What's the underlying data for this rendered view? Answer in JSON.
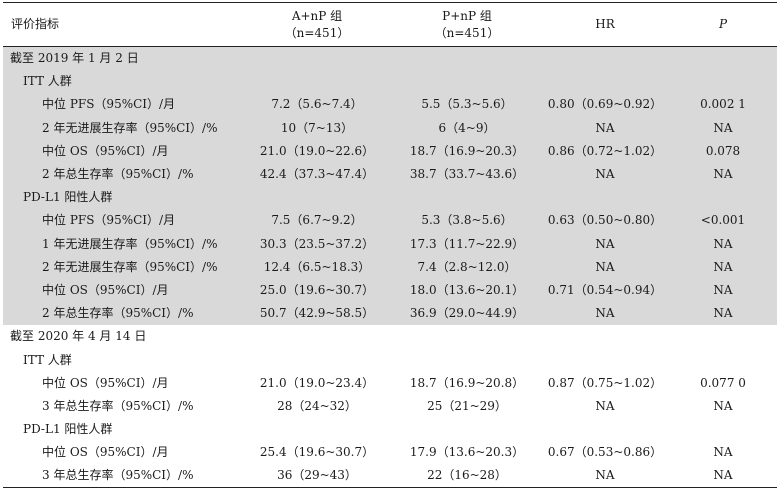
{
  "header": {
    "col1": "评价指标",
    "col2_line1": "A+nP 组",
    "col2_line2": "（n=451）",
    "col3_line1": "P+nP 组",
    "col3_line2": "（n=451）",
    "col4": "HR",
    "col5": "P"
  },
  "colors": {
    "shade": "#d9d9d9",
    "rule": "#222222"
  },
  "rows": [
    {
      "label": "截至 2019 年 1 月 2 日",
      "a": "",
      "b": "",
      "hr": "",
      "p": ""
    },
    {
      "label": "ITT 人群",
      "a": "",
      "b": "",
      "hr": "",
      "p": ""
    },
    {
      "label": "中位 PFS（95%CI）/月",
      "a": "7.2（5.6~7.4）",
      "b": "5.5（5.3~5.6）",
      "hr": "0.80（0.69~0.92）",
      "p": "0.002 1"
    },
    {
      "label": "2 年无进展生存率（95%CI）/%",
      "a": "10（7~13）",
      "b": "6（4~9）",
      "hr": "NA",
      "p": "NA"
    },
    {
      "label": "中位 OS（95%CI）/月",
      "a": "21.0（19.0~22.6）",
      "b": "18.7（16.9~20.3）",
      "hr": "0.86（0.72~1.02）",
      "p": "0.078"
    },
    {
      "label": "2 年总生存率（95%CI）/%",
      "a": "42.4（37.3~47.4）",
      "b": "38.7（33.7~43.6）",
      "hr": "NA",
      "p": "NA"
    },
    {
      "label": "PD-L1 阳性人群",
      "a": "",
      "b": "",
      "hr": "",
      "p": ""
    },
    {
      "label": "中位 PFS（95%CI）/月",
      "a": "7.5（6.7~9.2）",
      "b": "5.3（3.8~5.6）",
      "hr": "0.63（0.50~0.80）",
      "p": "<0.001"
    },
    {
      "label": "1 年无进展生存率（95%CI）/%",
      "a": "30.3（23.5~37.2）",
      "b": "17.3（11.7~22.9）",
      "hr": "NA",
      "p": "NA"
    },
    {
      "label": "2 年无进展生存率（95%CI）/%",
      "a": "12.4（6.5~18.3）",
      "b": "7.4（2.8~12.0）",
      "hr": "NA",
      "p": "NA"
    },
    {
      "label": "中位 OS（95%CI）/月",
      "a": "25.0（19.6~30.7）",
      "b": "18.0（13.6~20.1）",
      "hr": "0.71（0.54~0.94）",
      "p": "NA"
    },
    {
      "label": "2 年总生存率（95%CI）/%",
      "a": "50.7（42.9~58.5）",
      "b": "36.9（29.0~44.9）",
      "hr": "NA",
      "p": "NA"
    },
    {
      "label": "截至 2020 年 4 月 14 日",
      "a": "",
      "b": "",
      "hr": "",
      "p": ""
    },
    {
      "label": "ITT 人群",
      "a": "",
      "b": "",
      "hr": "",
      "p": ""
    },
    {
      "label": "中位 OS（95%CI）/月",
      "a": "21.0（19.0~23.4）",
      "b": "18.7（16.9~20.8）",
      "hr": "0.87（0.75~1.02）",
      "p": "0.077 0"
    },
    {
      "label": "3 年总生存率（95%CI）/%",
      "a": "28（24~32）",
      "b": "25（21~29）",
      "hr": "NA",
      "p": "NA"
    },
    {
      "label": "PD-L1 阳性人群",
      "a": "",
      "b": "",
      "hr": "",
      "p": ""
    },
    {
      "label": "中位 OS（95%CI）/月",
      "a": "25.4（19.6~30.7）",
      "b": "17.9（13.6~20.3）",
      "hr": "0.67（0.53~0.86）",
      "p": "NA"
    },
    {
      "label": "3 年总生存率（95%CI）/%",
      "a": "36（29~43）",
      "b": "22（16~28）",
      "hr": "NA",
      "p": "NA"
    }
  ]
}
